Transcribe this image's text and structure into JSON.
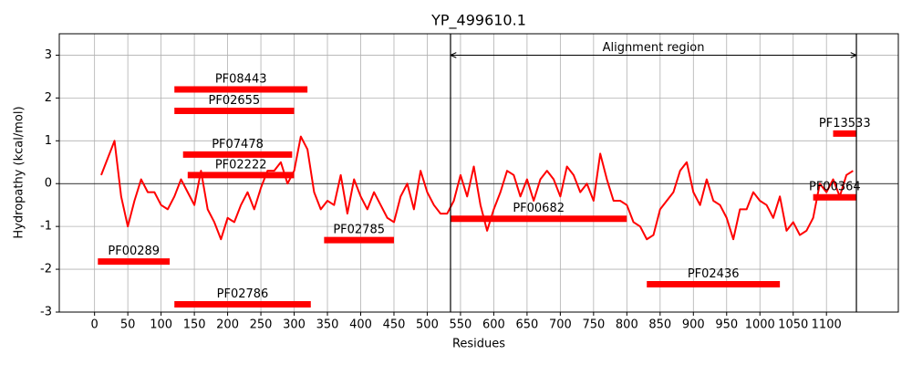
{
  "chart_data": {
    "type": "line",
    "title": "YP_499610.1",
    "x_label": "Residues",
    "y_label": "Hydropathy (kcal/mol)",
    "x": [
      10,
      20,
      30,
      40,
      50,
      60,
      70,
      80,
      90,
      100,
      110,
      120,
      130,
      140,
      150,
      160,
      170,
      180,
      190,
      200,
      210,
      220,
      230,
      240,
      250,
      260,
      270,
      280,
      290,
      300,
      310,
      320,
      330,
      340,
      350,
      360,
      370,
      380,
      390,
      400,
      410,
      420,
      430,
      440,
      450,
      460,
      470,
      480,
      490,
      500,
      510,
      520,
      530,
      540,
      550,
      560,
      570,
      580,
      590,
      600,
      610,
      620,
      630,
      640,
      650,
      660,
      670,
      680,
      690,
      700,
      710,
      720,
      730,
      740,
      750,
      760,
      770,
      780,
      790,
      800,
      810,
      820,
      830,
      840,
      850,
      860,
      870,
      880,
      890,
      900,
      910,
      920,
      930,
      940,
      950,
      960,
      970,
      980,
      990,
      1000,
      1010,
      1020,
      1030,
      1040,
      1050,
      1060,
      1070,
      1080,
      1090,
      1100,
      1110,
      1120,
      1130,
      1140
    ],
    "series": [
      {
        "color": "#ff0000",
        "values": [
          0.2,
          0.6,
          1.0,
          -0.3,
          -1.0,
          -0.4,
          0.1,
          -0.2,
          -0.2,
          -0.5,
          -0.6,
          -0.3,
          0.1,
          -0.2,
          -0.5,
          0.3,
          -0.6,
          -0.9,
          -1.3,
          -0.8,
          -0.9,
          -0.5,
          -0.2,
          -0.6,
          -0.1,
          0.3,
          0.3,
          0.5,
          0.0,
          0.3,
          1.1,
          0.8,
          -0.2,
          -0.6,
          -0.4,
          -0.5,
          0.2,
          -0.7,
          0.1,
          -0.3,
          -0.6,
          -0.2,
          -0.5,
          -0.8,
          -0.9,
          -0.3,
          0.0,
          -0.6,
          0.3,
          -0.2,
          -0.5,
          -0.7,
          -0.7,
          -0.4,
          0.2,
          -0.3,
          0.4,
          -0.5,
          -1.1,
          -0.6,
          -0.2,
          0.3,
          0.2,
          -0.3,
          0.1,
          -0.4,
          0.1,
          0.3,
          0.1,
          -0.3,
          0.4,
          0.2,
          -0.2,
          0.0,
          -0.4,
          0.7,
          0.1,
          -0.4,
          -0.4,
          -0.5,
          -0.9,
          -1.0,
          -1.3,
          -1.2,
          -0.6,
          -0.4,
          -0.2,
          0.3,
          0.5,
          -0.2,
          -0.5,
          0.1,
          -0.4,
          -0.5,
          -0.8,
          -1.3,
          -0.6,
          -0.6,
          -0.2,
          -0.4,
          -0.5,
          -0.8,
          -0.3,
          -1.1,
          -0.9,
          -1.2,
          -1.1,
          -0.8,
          0.0,
          -0.2,
          0.1,
          -0.3,
          0.2,
          0.3
        ]
      }
    ],
    "domains": [
      {
        "label": "PF08443",
        "start": 120,
        "end": 320,
        "y": 2.2
      },
      {
        "label": "PF02655",
        "start": 120,
        "end": 300,
        "y": 1.7
      },
      {
        "label": "PF07478",
        "start": 133,
        "end": 297,
        "y": 0.68
      },
      {
        "label": "PF02222",
        "start": 140,
        "end": 300,
        "y": 0.2
      },
      {
        "label": "PF00289",
        "start": 5,
        "end": 113,
        "y": -1.82
      },
      {
        "label": "PF02786",
        "start": 120,
        "end": 325,
        "y": -2.82
      },
      {
        "label": "PF02785",
        "start": 345,
        "end": 450,
        "y": -1.32
      },
      {
        "label": "PF00682",
        "start": 535,
        "end": 800,
        "y": -0.82
      },
      {
        "label": "PF02436",
        "start": 830,
        "end": 1030,
        "y": -2.35
      },
      {
        "label": "PF13533",
        "start": 1110,
        "end": 1145,
        "y": 1.17
      },
      {
        "label": "PF00364",
        "start": 1080,
        "end": 1145,
        "y": -0.32
      }
    ],
    "annotation": {
      "text": "Alignment region",
      "start": 535,
      "end": 1145,
      "y": 3
    },
    "hline": 0,
    "xlim": [
      -53,
      1208
    ],
    "ylim": [
      -3,
      3.5
    ],
    "xticks": [
      0,
      50,
      100,
      150,
      200,
      250,
      300,
      350,
      400,
      450,
      500,
      550,
      600,
      650,
      700,
      750,
      800,
      850,
      900,
      950,
      1000,
      1050,
      1100
    ],
    "yticks": [
      -3,
      -2,
      -1,
      0,
      1,
      2,
      3
    ],
    "grid": true
  }
}
